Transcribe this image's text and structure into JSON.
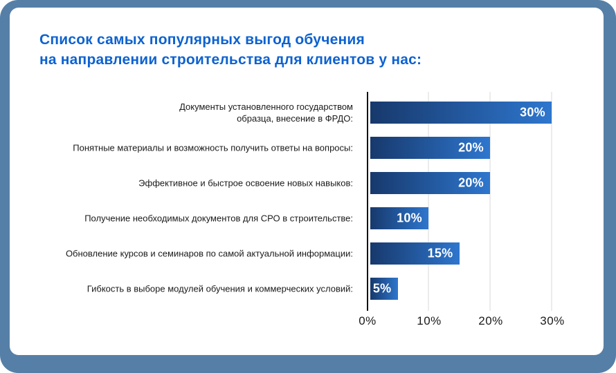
{
  "title": {
    "line1": "Список самых популярных выгод обучения",
    "line2": "на направлении строительства для клиентов у нас:"
  },
  "chart_data": {
    "type": "bar",
    "orientation": "horizontal",
    "title": "Список самых популярных выгод обучения на направлении строительства для клиентов у нас:",
    "categories": [
      "Документы установленного государством\nобразца, внесение в ФРДО:",
      "Понятные материалы и возможность получить ответы на вопросы:",
      "Эффективное и быстрое освоение новых навыков:",
      "Получение необходимых документов для СРО в строительстве:",
      "Обновление курсов и семинаров по самой актуальной информации:",
      "Гибкость в выборе модулей обучения и коммерческих условий:"
    ],
    "values": [
      30,
      20,
      20,
      10,
      15,
      5
    ],
    "value_labels": [
      "30%",
      "20%",
      "20%",
      "10%",
      "15%",
      "5%"
    ],
    "x_ticks": [
      {
        "value": 0,
        "label": "0%"
      },
      {
        "value": 10,
        "label": "10%"
      },
      {
        "value": 20,
        "label": "20%"
      },
      {
        "value": 30,
        "label": "30%"
      }
    ],
    "xlim": [
      0,
      34
    ],
    "grid": true,
    "legend": false,
    "xlabel": "",
    "ylabel": ""
  },
  "colors": {
    "page_background": "#567FA7",
    "card_background": "#FFFFFF",
    "title_text": "#0D62D0",
    "bar_gradient_start": "#17396C",
    "bar_gradient_end": "#2E76CE",
    "axis_line": "#111111",
    "gridline": "#ECECEC",
    "category_text": "#1A1A1A",
    "value_text": "#FFFFFF"
  }
}
